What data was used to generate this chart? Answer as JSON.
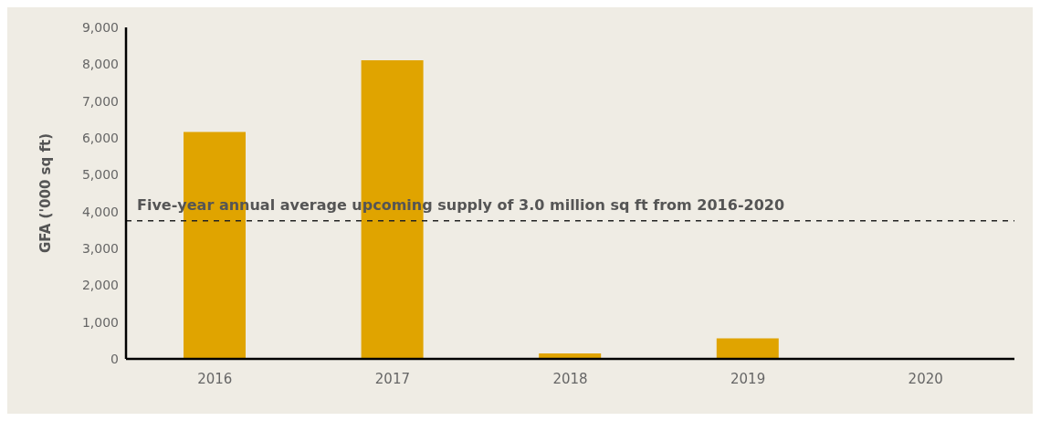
{
  "chart_data": {
    "type": "bar",
    "ylabel": "GFA ('000 sq ft)",
    "categories": [
      "2016",
      "2017",
      "2018",
      "2019",
      "2020"
    ],
    "values": [
      6160,
      8110,
      150,
      560,
      0
    ],
    "color": "#e0a400",
    "ylim": [
      0,
      9000
    ],
    "yticks": [
      {
        "value": 0,
        "label": "0"
      },
      {
        "value": 1000,
        "label": "1,000"
      },
      {
        "value": 2000,
        "label": "2,000"
      },
      {
        "value": 3000,
        "label": "3,000"
      },
      {
        "value": 4000,
        "label": "4,000"
      },
      {
        "value": 5000,
        "label": "5,000"
      },
      {
        "value": 6000,
        "label": "6,000"
      },
      {
        "value": 7000,
        "label": "7,000"
      },
      {
        "value": 8000,
        "label": "8,000"
      },
      {
        "value": 9000,
        "label": "9,000"
      }
    ],
    "grid": false,
    "legend": false,
    "ref_lines": [
      {
        "axis": "y",
        "value": 3750,
        "label": "Five-year annual average upcoming supply of 3.0 million sq ft from 2016-2020",
        "color": "#222222",
        "line_style": "dashed"
      }
    ]
  }
}
